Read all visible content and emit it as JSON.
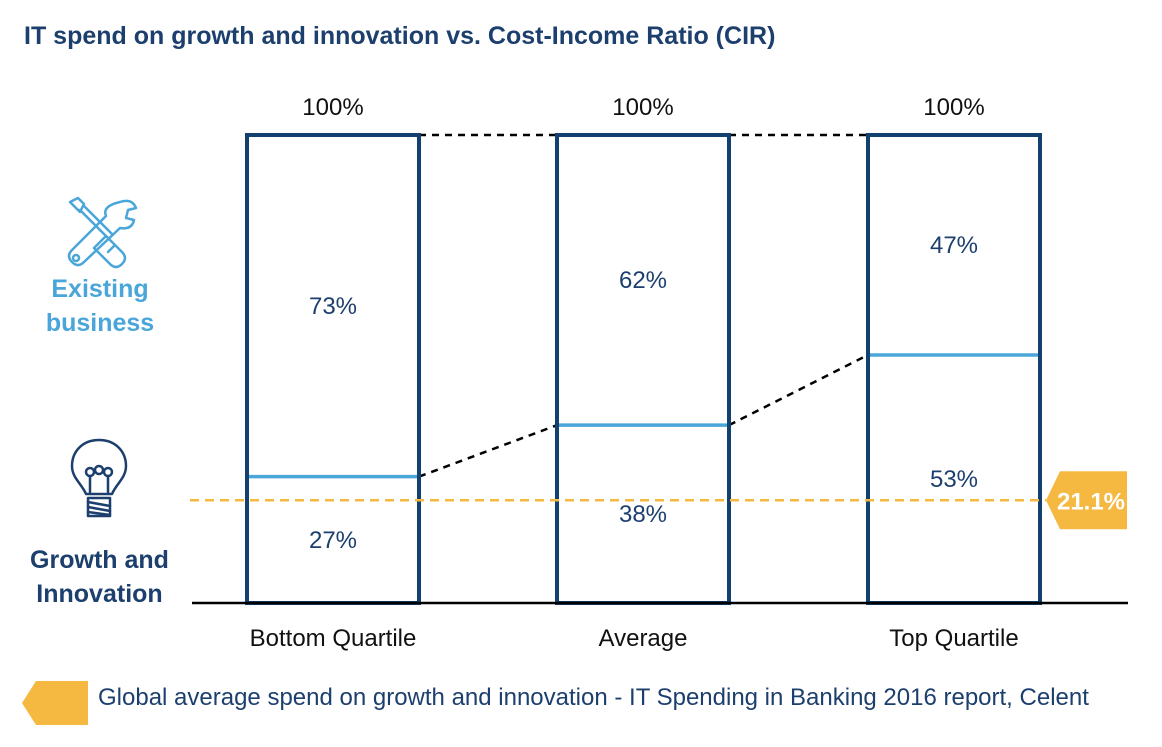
{
  "title": "IT spend on growth and innovation vs. Cost-Income Ratio (CIR)",
  "labels": {
    "existing_line1": "Existing",
    "existing_line2": "business",
    "growth_line1": "Growth and",
    "growth_line2": "Innovation"
  },
  "icons": {
    "existing": "wrench-screwdriver-icon",
    "growth": "lightbulb-icon",
    "benchmark": "orange-arrow-tag-icon"
  },
  "colors": {
    "bar_border": "#12406f",
    "divider": "#4aa6d9",
    "text_dark": "#1c3f6e",
    "existing_label": "#4aa6d9",
    "benchmark": "#f5b942"
  },
  "legend": {
    "text": "Global average spend on growth and innovation - IT Spending in Banking 2016 report, Celent"
  },
  "chart_data": {
    "type": "bar",
    "stacked": true,
    "categories": [
      "Bottom Quartile",
      "Average",
      "Top Quartile"
    ],
    "totals": [
      "100%",
      "100%",
      "100%"
    ],
    "series": [
      {
        "name": "Growth and Innovation",
        "values": [
          27,
          38,
          53
        ],
        "labels": [
          "27%",
          "38%",
          "53%"
        ]
      },
      {
        "name": "Existing business",
        "values": [
          73,
          62,
          47
        ],
        "labels": [
          "73%",
          "62%",
          "47%"
        ]
      }
    ],
    "reference_line": {
      "value": 21.1,
      "label": "21.1%"
    },
    "ylim": [
      0,
      100
    ]
  }
}
